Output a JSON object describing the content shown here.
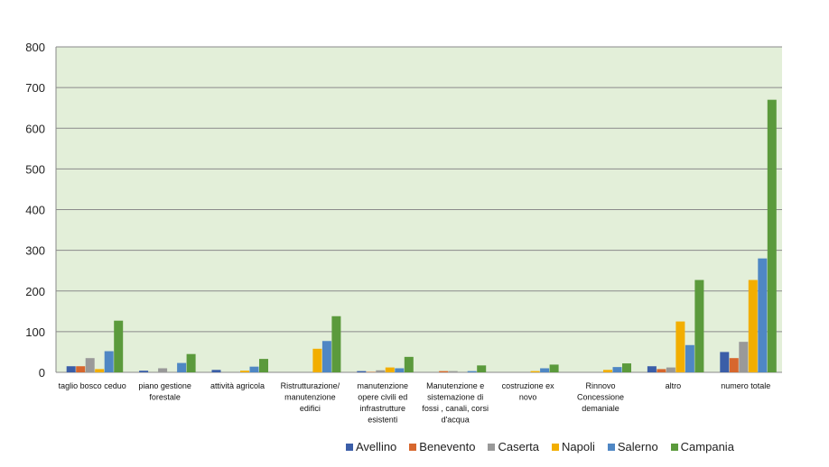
{
  "chart_data": {
    "type": "bar",
    "title": "",
    "xlabel": "",
    "ylabel": "",
    "ylim": [
      0,
      800
    ],
    "yticks": [
      0,
      100,
      200,
      300,
      400,
      500,
      600,
      700,
      800
    ],
    "grid": true,
    "legend_position": "bottom",
    "plot_background": "#e3efd9",
    "categories": [
      [
        "taglio bosco ceduo"
      ],
      [
        "piano gestione",
        "forestale"
      ],
      [
        "attività agricola"
      ],
      [
        "Ristrutturazione/",
        "manutenzione",
        "edifici"
      ],
      [
        "manutenzione",
        "opere civili ed",
        "infrastrutture",
        "esistenti"
      ],
      [
        "Manutenzione e",
        "sistemazione di",
        "fossi , canali, corsi",
        "d'acqua"
      ],
      [
        "costruzione ex",
        "novo"
      ],
      [
        "Rinnovo",
        "Concessione",
        "demaniale"
      ],
      [
        "altro"
      ],
      [
        "numero totale"
      ]
    ],
    "series": [
      {
        "name": "Avellino",
        "color": "#3b5ea8",
        "values": [
          15,
          4,
          6,
          0,
          3,
          0,
          0,
          0,
          15,
          50
        ]
      },
      {
        "name": "Benevento",
        "color": "#d7672e",
        "values": [
          15,
          0,
          0,
          0,
          1,
          3,
          0,
          0,
          8,
          35
        ]
      },
      {
        "name": "Caserta",
        "color": "#999999",
        "values": [
          35,
          10,
          0,
          0,
          5,
          3,
          0,
          0,
          12,
          75
        ]
      },
      {
        "name": "Napoli",
        "color": "#f2ae00",
        "values": [
          8,
          0,
          4,
          58,
          12,
          0,
          3,
          6,
          125,
          227
        ]
      },
      {
        "name": "Salerno",
        "color": "#4f87c4",
        "values": [
          52,
          23,
          14,
          77,
          10,
          3,
          10,
          13,
          67,
          280
        ]
      },
      {
        "name": "Campania",
        "color": "#5b9a3c",
        "values": [
          127,
          45,
          33,
          138,
          38,
          17,
          19,
          22,
          227,
          670
        ]
      }
    ]
  }
}
